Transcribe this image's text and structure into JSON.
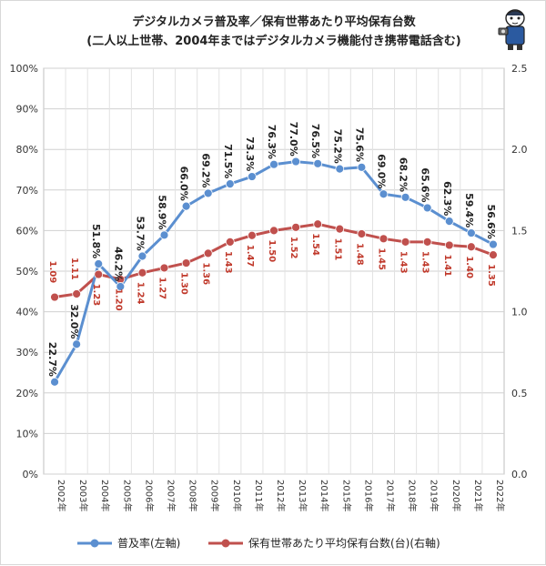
{
  "title_line1": "デジタルカメラ普及率／保有世帯あたり平均保有台数",
  "title_line2": "(二人以上世帯、2004年まではデジタルカメラ機能付き携帯電話含む)",
  "chart_data": {
    "type": "line",
    "categories": [
      "2002年",
      "2003年",
      "2004年",
      "2005年",
      "2006年",
      "2007年",
      "2008年",
      "2009年",
      "2010年",
      "2011年",
      "2012年",
      "2013年",
      "2014年",
      "2015年",
      "2016年",
      "2017年",
      "2018年",
      "2019年",
      "2020年",
      "2021年",
      "2022年"
    ],
    "series": [
      {
        "name": "普及率(左軸)",
        "axis": "left",
        "color": "#5b8fd0",
        "values": [
          22.7,
          32.0,
          51.8,
          46.2,
          53.7,
          58.9,
          66.0,
          69.2,
          71.5,
          73.3,
          76.3,
          77.0,
          76.5,
          75.2,
          75.6,
          69.0,
          68.2,
          65.6,
          62.3,
          59.4,
          56.6
        ],
        "labels": [
          "22.7%",
          "32.0%",
          "51.8%",
          "46.2%",
          "53.7%",
          "58.9%",
          "66.0%",
          "69.2%",
          "71.5%",
          "73.3%",
          "76.3%",
          "77.0%",
          "76.5%",
          "75.2%",
          "75.6%",
          "69.0%",
          "68.2%",
          "65.6%",
          "62.3%",
          "59.4%",
          "56.6%"
        ]
      },
      {
        "name": "保有世帯あたり平均保有台数(台)(右軸)",
        "axis": "right",
        "color": "#c0504d",
        "values": [
          1.09,
          1.11,
          1.23,
          1.2,
          1.24,
          1.27,
          1.3,
          1.36,
          1.43,
          1.47,
          1.5,
          1.52,
          1.54,
          1.51,
          1.48,
          1.45,
          1.43,
          1.43,
          1.41,
          1.4,
          1.35
        ],
        "labels": [
          "1.09",
          "1.11",
          "1.23",
          "1.20",
          "1.24",
          "1.27",
          "1.30",
          "1.36",
          "1.43",
          "1.47",
          "1.50",
          "1.52",
          "1.54",
          "1.51",
          "1.48",
          "1.45",
          "1.43",
          "1.43",
          "1.41",
          "1.40",
          "1.35"
        ]
      }
    ],
    "y_left": {
      "min": 0,
      "max": 100,
      "ticks": [
        "0%",
        "10%",
        "20%",
        "30%",
        "40%",
        "50%",
        "60%",
        "70%",
        "80%",
        "90%",
        "100%"
      ]
    },
    "y_right": {
      "min": 0,
      "max": 2.5,
      "ticks": [
        "0.0",
        "0.5",
        "1.0",
        "1.5",
        "2.0",
        "2.5"
      ]
    },
    "grid": true,
    "legend": "bottom"
  }
}
